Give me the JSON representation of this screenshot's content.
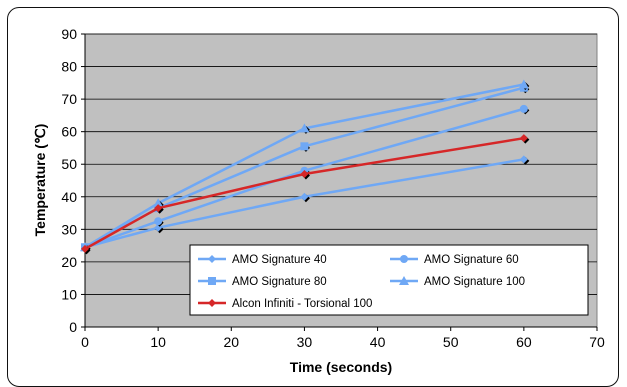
{
  "chart_data": {
    "type": "line",
    "title": "",
    "xlabel": "Time (seconds)",
    "ylabel": "Temperature (℃)",
    "xlim": [
      0,
      70
    ],
    "ylim": [
      0,
      90
    ],
    "x_ticks": [
      0,
      10,
      20,
      30,
      40,
      50,
      60,
      70
    ],
    "y_ticks": [
      0,
      10,
      20,
      30,
      40,
      50,
      60,
      70,
      80,
      90
    ],
    "grid": "horizontal",
    "plot_background": "#c0c0c0",
    "legend_placement": "bottom-right",
    "x": [
      0,
      10,
      30,
      60
    ],
    "series": [
      {
        "name": "AMO Signature 40",
        "values": [
          24.5,
          30.5,
          40,
          51.5
        ],
        "color": "#6fa8f5",
        "marker": "diamond"
      },
      {
        "name": "AMO Signature 60",
        "values": [
          24.5,
          32.5,
          48,
          67
        ],
        "color": "#6fa8f5",
        "marker": "circle"
      },
      {
        "name": "AMO Signature 80",
        "values": [
          24.5,
          36.5,
          55.5,
          73.5
        ],
        "color": "#6fa8f5",
        "marker": "square"
      },
      {
        "name": "AMO Signature 100",
        "values": [
          24.5,
          38,
          61,
          74.5
        ],
        "color": "#6fa8f5",
        "marker": "triangle"
      },
      {
        "name": "Alcon Infiniti - Torsional 100",
        "values": [
          24,
          36.5,
          47,
          58
        ],
        "color": "#d62728",
        "marker": "diamond"
      }
    ]
  }
}
